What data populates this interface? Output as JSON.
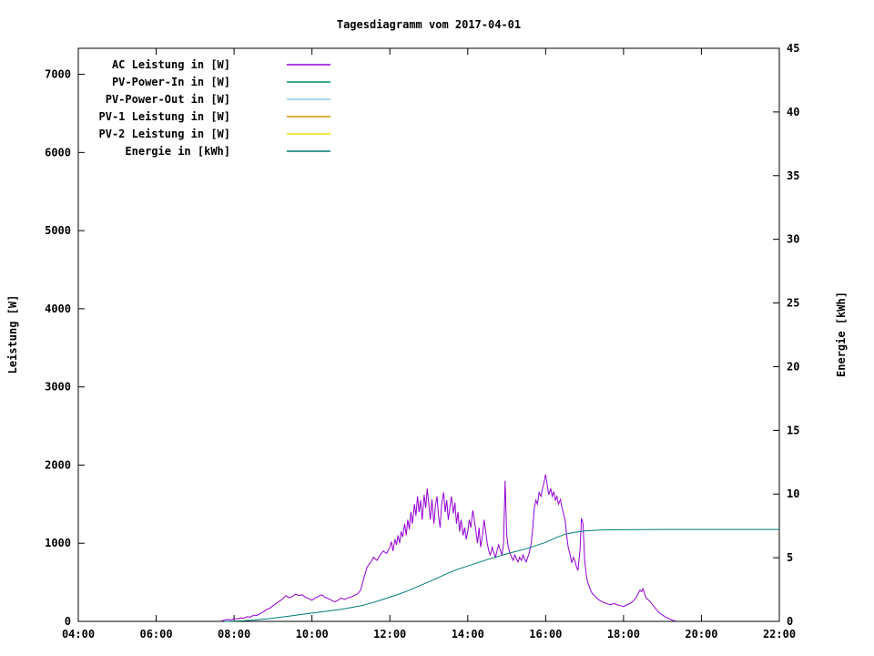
{
  "colors": {
    "background": "#ffffff",
    "foreground": "#000000"
  },
  "chart_data": {
    "type": "line",
    "title": "Tagesdiagramm vom 2017-04-01",
    "legend_position": "top-left-inside",
    "grid": false,
    "x_axis": {
      "range_hours": [
        4,
        22
      ],
      "tick_hours": [
        4,
        6,
        8,
        10,
        12,
        14,
        16,
        18,
        20,
        22
      ],
      "tick_labels": [
        "04:00",
        "06:00",
        "08:00",
        "10:00",
        "12:00",
        "14:00",
        "16:00",
        "18:00",
        "20:00",
        "22:00"
      ]
    },
    "y_left": {
      "label": "Leistung [W]",
      "range": [
        0,
        7333
      ],
      "ticks": [
        0,
        1000,
        2000,
        3000,
        4000,
        5000,
        6000,
        7000
      ]
    },
    "y_right": {
      "label": "Energie [kWh]",
      "range": [
        0,
        45
      ],
      "ticks": [
        0,
        5,
        10,
        15,
        20,
        25,
        30,
        35,
        40,
        45
      ]
    },
    "series": [
      {
        "name": "AC Leistung in [W]",
        "color": "#9400d3",
        "axis": "left",
        "points": [
          [
            7.67,
            5
          ],
          [
            7.75,
            15
          ],
          [
            7.83,
            25
          ],
          [
            7.92,
            20
          ],
          [
            8.0,
            35
          ],
          [
            8.08,
            30
          ],
          [
            8.17,
            45
          ],
          [
            8.25,
            40
          ],
          [
            8.33,
            60
          ],
          [
            8.42,
            55
          ],
          [
            8.5,
            80
          ],
          [
            8.58,
            75
          ],
          [
            8.67,
            100
          ],
          [
            8.75,
            120
          ],
          [
            8.83,
            150
          ],
          [
            8.92,
            170
          ],
          [
            9.0,
            200
          ],
          [
            9.08,
            230
          ],
          [
            9.17,
            260
          ],
          [
            9.25,
            290
          ],
          [
            9.33,
            330
          ],
          [
            9.42,
            300
          ],
          [
            9.5,
            320
          ],
          [
            9.58,
            350
          ],
          [
            9.67,
            330
          ],
          [
            9.75,
            340
          ],
          [
            9.83,
            310
          ],
          [
            9.92,
            290
          ],
          [
            10.0,
            270
          ],
          [
            10.08,
            300
          ],
          [
            10.17,
            320
          ],
          [
            10.25,
            340
          ],
          [
            10.33,
            310
          ],
          [
            10.42,
            290
          ],
          [
            10.5,
            270
          ],
          [
            10.58,
            250
          ],
          [
            10.67,
            270
          ],
          [
            10.75,
            300
          ],
          [
            10.83,
            280
          ],
          [
            10.92,
            300
          ],
          [
            11.0,
            310
          ],
          [
            11.08,
            330
          ],
          [
            11.17,
            350
          ],
          [
            11.25,
            400
          ],
          [
            11.33,
            550
          ],
          [
            11.42,
            700
          ],
          [
            11.5,
            750
          ],
          [
            11.58,
            820
          ],
          [
            11.67,
            780
          ],
          [
            11.75,
            850
          ],
          [
            11.83,
            900
          ],
          [
            11.92,
            870
          ],
          [
            12.0,
            950
          ],
          [
            12.04,
            1020
          ],
          [
            12.08,
            900
          ],
          [
            12.13,
            1050
          ],
          [
            12.17,
            980
          ],
          [
            12.21,
            1100
          ],
          [
            12.25,
            1000
          ],
          [
            12.29,
            1150
          ],
          [
            12.33,
            1080
          ],
          [
            12.38,
            1250
          ],
          [
            12.42,
            1100
          ],
          [
            12.46,
            1300
          ],
          [
            12.5,
            1180
          ],
          [
            12.54,
            1400
          ],
          [
            12.58,
            1250
          ],
          [
            12.63,
            1500
          ],
          [
            12.67,
            1350
          ],
          [
            12.71,
            1600
          ],
          [
            12.75,
            1400
          ],
          [
            12.79,
            1550
          ],
          [
            12.83,
            1300
          ],
          [
            12.88,
            1620
          ],
          [
            12.92,
            1450
          ],
          [
            12.96,
            1700
          ],
          [
            13.0,
            1500
          ],
          [
            13.04,
            1300
          ],
          [
            13.08,
            1560
          ],
          [
            13.13,
            1250
          ],
          [
            13.17,
            1480
          ],
          [
            13.21,
            1600
          ],
          [
            13.25,
            1350
          ],
          [
            13.29,
            1200
          ],
          [
            13.33,
            1500
          ],
          [
            13.38,
            1650
          ],
          [
            13.42,
            1400
          ],
          [
            13.46,
            1550
          ],
          [
            13.5,
            1300
          ],
          [
            13.54,
            1450
          ],
          [
            13.58,
            1600
          ],
          [
            13.63,
            1380
          ],
          [
            13.67,
            1520
          ],
          [
            13.71,
            1250
          ],
          [
            13.75,
            1400
          ],
          [
            13.79,
            1150
          ],
          [
            13.83,
            1300
          ],
          [
            13.88,
            1100
          ],
          [
            13.92,
            1200
          ],
          [
            13.96,
            1050
          ],
          [
            14.0,
            1150
          ],
          [
            14.04,
            1300
          ],
          [
            14.08,
            1200
          ],
          [
            14.13,
            1420
          ],
          [
            14.17,
            1300
          ],
          [
            14.21,
            1150
          ],
          [
            14.25,
            1000
          ],
          [
            14.29,
            1200
          ],
          [
            14.33,
            950
          ],
          [
            14.38,
            1100
          ],
          [
            14.42,
            1300
          ],
          [
            14.46,
            1150
          ],
          [
            14.5,
            1000
          ],
          [
            14.54,
            900
          ],
          [
            14.58,
            850
          ],
          [
            14.63,
            950
          ],
          [
            14.67,
            880
          ],
          [
            14.71,
            820
          ],
          [
            14.75,
            900
          ],
          [
            14.79,
            980
          ],
          [
            14.83,
            920
          ],
          [
            14.88,
            850
          ],
          [
            14.92,
            1000
          ],
          [
            14.96,
            1800
          ],
          [
            15.0,
            1100
          ],
          [
            15.04,
            950
          ],
          [
            15.08,
            880
          ],
          [
            15.13,
            820
          ],
          [
            15.17,
            780
          ],
          [
            15.21,
            850
          ],
          [
            15.25,
            800
          ],
          [
            15.29,
            760
          ],
          [
            15.33,
            820
          ],
          [
            15.38,
            780
          ],
          [
            15.42,
            850
          ],
          [
            15.46,
            800
          ],
          [
            15.5,
            760
          ],
          [
            15.54,
            820
          ],
          [
            15.58,
            880
          ],
          [
            15.63,
            1000
          ],
          [
            15.67,
            1200
          ],
          [
            15.71,
            1450
          ],
          [
            15.75,
            1550
          ],
          [
            15.79,
            1500
          ],
          [
            15.83,
            1650
          ],
          [
            15.88,
            1600
          ],
          [
            15.92,
            1700
          ],
          [
            15.96,
            1780
          ],
          [
            16.0,
            1880
          ],
          [
            16.04,
            1750
          ],
          [
            16.08,
            1620
          ],
          [
            16.13,
            1700
          ],
          [
            16.17,
            1600
          ],
          [
            16.21,
            1660
          ],
          [
            16.25,
            1550
          ],
          [
            16.29,
            1600
          ],
          [
            16.33,
            1500
          ],
          [
            16.38,
            1560
          ],
          [
            16.42,
            1450
          ],
          [
            16.46,
            1380
          ],
          [
            16.5,
            1300
          ],
          [
            16.54,
            1100
          ],
          [
            16.58,
            950
          ],
          [
            16.63,
            850
          ],
          [
            16.67,
            750
          ],
          [
            16.71,
            820
          ],
          [
            16.75,
            780
          ],
          [
            16.79,
            700
          ],
          [
            16.83,
            650
          ],
          [
            16.88,
            900
          ],
          [
            16.92,
            1320
          ],
          [
            16.96,
            1250
          ],
          [
            17.0,
            800
          ],
          [
            17.04,
            600
          ],
          [
            17.08,
            500
          ],
          [
            17.13,
            430
          ],
          [
            17.17,
            380
          ],
          [
            17.21,
            350
          ],
          [
            17.25,
            330
          ],
          [
            17.29,
            310
          ],
          [
            17.33,
            290
          ],
          [
            17.38,
            270
          ],
          [
            17.42,
            260
          ],
          [
            17.46,
            250
          ],
          [
            17.5,
            240
          ],
          [
            17.58,
            225
          ],
          [
            17.67,
            210
          ],
          [
            17.75,
            230
          ],
          [
            17.83,
            215
          ],
          [
            17.92,
            200
          ],
          [
            18.0,
            190
          ],
          [
            18.08,
            210
          ],
          [
            18.17,
            230
          ],
          [
            18.25,
            260
          ],
          [
            18.33,
            310
          ],
          [
            18.42,
            400
          ],
          [
            18.46,
            380
          ],
          [
            18.5,
            420
          ],
          [
            18.54,
            350
          ],
          [
            18.58,
            300
          ],
          [
            18.67,
            260
          ],
          [
            18.75,
            210
          ],
          [
            18.83,
            160
          ],
          [
            18.92,
            110
          ],
          [
            19.0,
            80
          ],
          [
            19.08,
            55
          ],
          [
            19.17,
            35
          ],
          [
            19.25,
            15
          ],
          [
            19.33,
            5
          ]
        ]
      },
      {
        "name": "PV-Power-In in [W]",
        "color": "#009073",
        "axis": "left",
        "points": []
      },
      {
        "name": "PV-Power-Out in [W]",
        "color": "#87ceeb",
        "axis": "left",
        "points": []
      },
      {
        "name": "PV-1 Leistung in [W]",
        "color": "#d89000",
        "axis": "left",
        "points": []
      },
      {
        "name": "PV-2 Leistung in [W]",
        "color": "#e6e600",
        "axis": "left",
        "points": []
      },
      {
        "name": "Energie in [kWh]",
        "color": "#007a7a",
        "axis": "right",
        "points": [
          [
            7.75,
            0
          ],
          [
            8.0,
            0.02
          ],
          [
            8.25,
            0.05
          ],
          [
            8.5,
            0.1
          ],
          [
            8.75,
            0.17
          ],
          [
            9.0,
            0.25
          ],
          [
            9.25,
            0.35
          ],
          [
            9.5,
            0.45
          ],
          [
            9.75,
            0.55
          ],
          [
            10.0,
            0.65
          ],
          [
            10.25,
            0.75
          ],
          [
            10.5,
            0.85
          ],
          [
            10.75,
            0.95
          ],
          [
            11.0,
            1.08
          ],
          [
            11.25,
            1.22
          ],
          [
            11.5,
            1.42
          ],
          [
            11.75,
            1.65
          ],
          [
            12.0,
            1.9
          ],
          [
            12.25,
            2.15
          ],
          [
            12.5,
            2.45
          ],
          [
            12.75,
            2.78
          ],
          [
            13.0,
            3.1
          ],
          [
            13.25,
            3.45
          ],
          [
            13.5,
            3.8
          ],
          [
            13.75,
            4.1
          ],
          [
            14.0,
            4.35
          ],
          [
            14.25,
            4.6
          ],
          [
            14.5,
            4.85
          ],
          [
            15.0,
            5.3
          ],
          [
            15.5,
            5.7
          ],
          [
            16.0,
            6.2
          ],
          [
            16.25,
            6.55
          ],
          [
            16.5,
            6.85
          ],
          [
            16.75,
            7.0
          ],
          [
            17.0,
            7.1
          ],
          [
            17.25,
            7.15
          ],
          [
            17.5,
            7.18
          ],
          [
            18.0,
            7.2
          ],
          [
            19.0,
            7.22
          ],
          [
            20.0,
            7.22
          ],
          [
            21.0,
            7.22
          ],
          [
            22.0,
            7.22
          ]
        ]
      }
    ]
  }
}
